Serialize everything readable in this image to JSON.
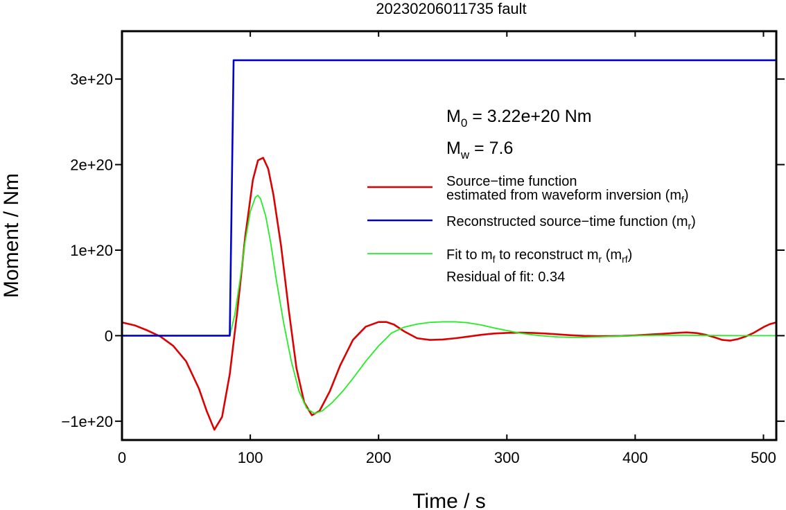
{
  "chart_data": {
    "type": "line",
    "title": "20230206011735 fault",
    "xlabel": "Time / s",
    "ylabel": "Moment / Nm",
    "xlim": [
      0,
      510
    ],
    "ylim": [
      -1.22e+20,
      3.56e+20
    ],
    "x_ticks": [
      0,
      100,
      200,
      300,
      400,
      500
    ],
    "x_tick_labels": [
      "0",
      "100",
      "200",
      "300",
      "400",
      "500"
    ],
    "y_ticks": [
      -1e+20,
      0,
      1e+20,
      2e+20,
      3e+20
    ],
    "y_tick_labels": [
      "−1e+20",
      "0",
      "1e+20",
      "2e+20",
      "3e+20"
    ],
    "grid": false,
    "annotations": {
      "m0": {
        "main": "M",
        "sub": "0",
        "rest": " = 3.22e+20 Nm"
      },
      "mw": {
        "main": "M",
        "sub": "w",
        "rest": " = 7.6"
      },
      "residual": "Residual of fit: 0.34"
    },
    "legend_position": "right",
    "legend": [
      {
        "key": "red",
        "color": "#dd0000",
        "line1": "Source−time function",
        "line2": "estimated from waveform inversion (m",
        "sub": "f",
        "tail": ")"
      },
      {
        "key": "blue",
        "color": "#0000cc",
        "line1": "Reconstructed source−time function (m",
        "sub": "r",
        "tail": ")"
      },
      {
        "key": "green",
        "color": "#22ee22",
        "line1": "Fit to m",
        "sub": "f",
        "mid": " to reconstruct m",
        "sub2": "r",
        "mid2": " (m",
        "sub3": "rf",
        "tail": ")"
      }
    ],
    "series": [
      {
        "key": "red",
        "color": "#dd0000",
        "x": [
          0,
          10,
          20,
          30,
          40,
          50,
          60,
          66,
          72,
          78,
          84,
          90,
          96,
          102,
          106,
          110,
          114,
          118,
          124,
          130,
          136,
          142,
          148,
          154,
          162,
          170,
          180,
          190,
          200,
          206,
          212,
          220,
          230,
          240,
          250,
          260,
          270,
          280,
          290,
          300,
          310,
          320,
          330,
          340,
          350,
          360,
          370,
          380,
          390,
          400,
          410,
          420,
          430,
          440,
          448,
          455,
          462,
          468,
          474,
          480,
          486,
          492,
          500,
          505,
          510
        ],
        "y": [
          1.55e+19,
          1.2e+19,
          6e+18,
          -1e+18,
          -1.2e+19,
          -3e+19,
          -6.2e+19,
          -8.8e+19,
          -1.1e+20,
          -9.5e+19,
          -4.5e+19,
          3e+19,
          1.15e+20,
          1.82e+20,
          2.05e+20,
          2.08e+20,
          1.95e+20,
          1.65e+20,
          1.05e+20,
          3e+19,
          -3.8e+19,
          -7.8e+19,
          -9.3e+19,
          -8.8e+19,
          -6.5e+19,
          -3.5e+19,
          -5e+18,
          1.05e+19,
          1.6e+19,
          1.6e+19,
          1.3e+19,
          5e+18,
          -3e+18,
          -5e+18,
          -4.5e+18,
          -3e+18,
          -1e+18,
          1e+18,
          2.5e+18,
          3.2e+18,
          3.5e+18,
          3.2e+18,
          2.5e+18,
          1.5e+18,
          5e+17,
          -2e+17,
          -5e+17,
          -5e+17,
          -3e+17,
          3e+17,
          1.2e+18,
          2e+18,
          3e+18,
          3.8e+18,
          3e+18,
          1e+18,
          -2e+18,
          -5e+18,
          -5.8e+18,
          -4e+18,
          -1e+18,
          3e+18,
          1e+19,
          1.35e+19,
          1.55e+19
        ]
      },
      {
        "key": "green",
        "color": "#22ee22",
        "x": [
          0,
          84,
          88,
          92,
          96,
          100,
          104,
          106,
          108,
          112,
          116,
          120,
          126,
          132,
          138,
          144,
          150,
          156,
          164,
          172,
          180,
          190,
          200,
          210,
          220,
          230,
          240,
          250,
          260,
          270,
          280,
          290,
          300,
          310,
          320,
          330,
          340,
          350,
          360,
          370,
          380,
          400,
          420,
          440,
          460,
          480,
          500,
          510
        ],
        "y": [
          0,
          0,
          2.5e+19,
          6.5e+19,
          1.1e+20,
          1.45e+20,
          1.62e+20,
          1.64e+20,
          1.6e+20,
          1.4e+20,
          1.08e+20,
          6.8e+19,
          1.5e+19,
          -3e+19,
          -6.5e+19,
          -8.5e+19,
          -9.1e+19,
          -8.8e+19,
          -7.8e+19,
          -6.5e+19,
          -5e+19,
          -3e+19,
          -1.2e+19,
          3e+18,
          1e+19,
          1.35e+19,
          1.55e+19,
          1.62e+19,
          1.62e+19,
          1.5e+19,
          1.25e+19,
          9e+18,
          6e+18,
          3e+18,
          1e+18,
          -5e+17,
          -1.5e+18,
          -2e+18,
          -2e+18,
          -1.5e+18,
          -1e+18,
          0,
          5e+17,
          5e+17,
          2e+17,
          0,
          0,
          0
        ]
      },
      {
        "key": "blue",
        "color": "#0000cc",
        "x": [
          0,
          84,
          85.5,
          87,
          510
        ],
        "y": [
          0,
          0,
          1.6e+20,
          3.22e+20,
          3.22e+20
        ]
      }
    ]
  }
}
